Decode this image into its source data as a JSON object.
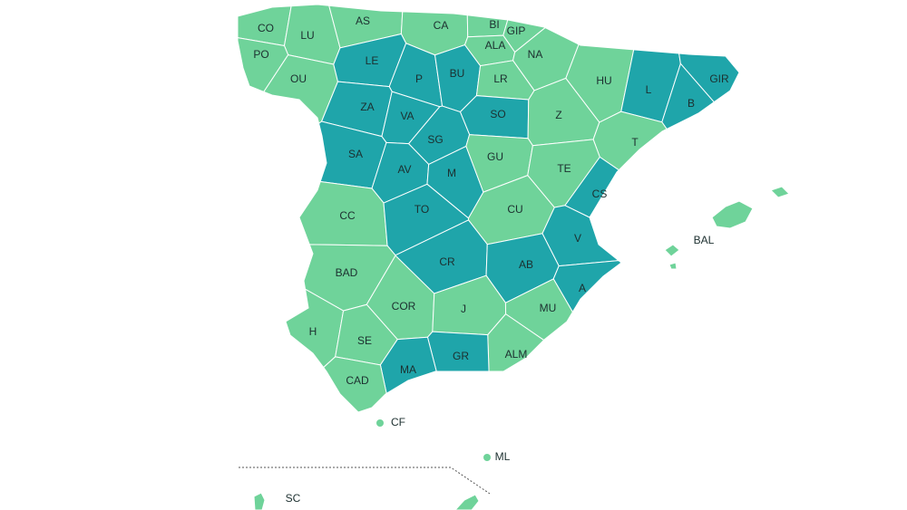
{
  "regions": [
    {
      "label": "CO",
      "color": "#6fd39a"
    },
    {
      "label": "LU",
      "color": "#6fd39a"
    },
    {
      "label": "AS",
      "color": "#6fd39a"
    },
    {
      "label": "CA",
      "color": "#6fd39a"
    },
    {
      "label": "BI",
      "color": "#6fd39a"
    },
    {
      "label": "GIP",
      "color": "#6fd39a"
    },
    {
      "label": "ALA",
      "color": "#6fd39a"
    },
    {
      "label": "NA",
      "color": "#6fd39a"
    },
    {
      "label": "PO",
      "color": "#6fd39a"
    },
    {
      "label": "OU",
      "color": "#6fd39a"
    },
    {
      "label": "LE",
      "color": "#1fa5aa"
    },
    {
      "label": "P",
      "color": "#1fa5aa"
    },
    {
      "label": "BU",
      "color": "#1fa5aa"
    },
    {
      "label": "LR",
      "color": "#6fd39a"
    },
    {
      "label": "HU",
      "color": "#6fd39a"
    },
    {
      "label": "L",
      "color": "#1fa5aa"
    },
    {
      "label": "GIR",
      "color": "#1fa5aa"
    },
    {
      "label": "B",
      "color": "#1fa5aa"
    },
    {
      "label": "ZA",
      "color": "#1fa5aa"
    },
    {
      "label": "VA",
      "color": "#1fa5aa"
    },
    {
      "label": "SO",
      "color": "#1fa5aa"
    },
    {
      "label": "Z",
      "color": "#6fd39a"
    },
    {
      "label": "SG",
      "color": "#1fa5aa"
    },
    {
      "label": "T",
      "color": "#6fd39a"
    },
    {
      "label": "SA",
      "color": "#1fa5aa"
    },
    {
      "label": "AV",
      "color": "#1fa5aa"
    },
    {
      "label": "M",
      "color": "#1fa5aa"
    },
    {
      "label": "GU",
      "color": "#6fd39a"
    },
    {
      "label": "TE",
      "color": "#6fd39a"
    },
    {
      "label": "CS",
      "color": "#1fa5aa"
    },
    {
      "label": "CC",
      "color": "#6fd39a"
    },
    {
      "label": "TO",
      "color": "#1fa5aa"
    },
    {
      "label": "CU",
      "color": "#6fd39a"
    },
    {
      "label": "V",
      "color": "#1fa5aa"
    },
    {
      "label": "BAL",
      "color": "#6fd39a"
    },
    {
      "label": "CR",
      "color": "#1fa5aa"
    },
    {
      "label": "AB",
      "color": "#1fa5aa"
    },
    {
      "label": "BAD",
      "color": "#6fd39a"
    },
    {
      "label": "A",
      "color": "#1fa5aa"
    },
    {
      "label": "COR",
      "color": "#6fd39a"
    },
    {
      "label": "J",
      "color": "#6fd39a"
    },
    {
      "label": "MU",
      "color": "#6fd39a"
    },
    {
      "label": "H",
      "color": "#6fd39a"
    },
    {
      "label": "SE",
      "color": "#6fd39a"
    },
    {
      "label": "ALM",
      "color": "#6fd39a"
    },
    {
      "label": "GR",
      "color": "#1fa5aa"
    },
    {
      "label": "MA",
      "color": "#1fa5aa"
    },
    {
      "label": "CAD",
      "color": "#6fd39a"
    },
    {
      "label": "CF",
      "color": "#6fd39a"
    },
    {
      "label": "ML",
      "color": "#6fd39a"
    },
    {
      "label": "SC",
      "color": "#6fd39a"
    }
  ]
}
